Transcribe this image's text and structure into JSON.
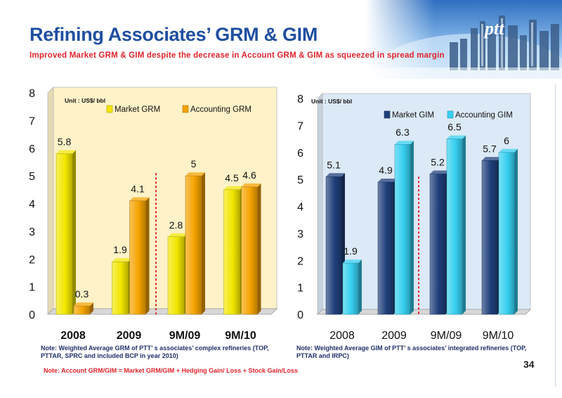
{
  "header": {
    "title": "Refining Associates’ GRM & GIM",
    "subtitle": "Improved Market GRM & GIM despite the decrease in Account GRM & GIM as squeezed in spread margin",
    "logo_text": "ptt"
  },
  "chart_data": [
    {
      "type": "bar",
      "unit_label": "Unit : US$/ bbl",
      "categories": [
        "2008",
        "2009",
        "9M/09",
        "9M/10"
      ],
      "series": [
        {
          "name": "Market GRM",
          "values": [
            5.8,
            1.9,
            2.8,
            4.5
          ],
          "color": "#f2e600"
        },
        {
          "name": "Accounting GRM",
          "values": [
            0.3,
            4.1,
            5.0,
            4.6
          ],
          "color": "#f5a300"
        }
      ],
      "ylim": [
        0,
        8
      ],
      "yticks": [
        "0",
        "1",
        "2",
        "3",
        "4",
        "5",
        "6",
        "7",
        "8"
      ],
      "legend_placement": "top",
      "background": "#fff2c8"
    },
    {
      "type": "bar",
      "unit_label": "Unit : US$/ bbl",
      "categories": [
        "2008",
        "2009",
        "9M/09",
        "9M/10"
      ],
      "series": [
        {
          "name": "Market GIM",
          "values": [
            5.1,
            4.9,
            5.2,
            5.7
          ],
          "color": "#1f3f7a"
        },
        {
          "name": "Accounting GIM",
          "values": [
            1.9,
            6.3,
            6.5,
            6.0
          ],
          "color": "#36cff0"
        }
      ],
      "ylim": [
        0,
        8
      ],
      "yticks": [
        "0",
        "1",
        "2",
        "3",
        "4",
        "5",
        "6",
        "7",
        "8"
      ],
      "legend_placement": "top",
      "background": "#dce9f6"
    }
  ],
  "notes": {
    "left": "Note: Weighted Average GRM of PTT’ s associates’ complex refineries (TOP, PTTAR, SPRC and included BCP in year 2010)",
    "right": "Note: Weighted Average GIM of PTT’ s associates’ integrated refineries (TOP, PTTAR and IRPC)",
    "account": "Note: Account GRM/GIM = Market GRM/GIM + Hedging Gain/ Loss + Stock Gain/Loss"
  },
  "page_number": "34"
}
